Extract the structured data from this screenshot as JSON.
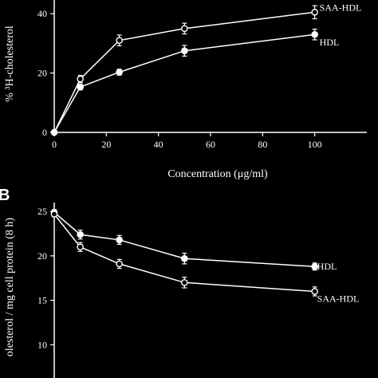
{
  "chart_data": [
    {
      "type": "line",
      "panel_label": "",
      "xlabel": "Concentration (μg/ml)",
      "ylabel": "% ³H-cholesterol",
      "xlim": [
        0,
        120
      ],
      "ylim": [
        0,
        50
      ],
      "xticks": [
        0,
        20,
        40,
        60,
        80,
        100
      ],
      "yticks": [
        0,
        20,
        40
      ],
      "series": [
        {
          "name": "SAA-HDL",
          "marker": "open-circle",
          "x": [
            0,
            10,
            25,
            50,
            100
          ],
          "y": [
            0,
            18,
            31,
            35,
            40.5
          ],
          "err": [
            0,
            1.2,
            1.8,
            1.8,
            2.2
          ]
        },
        {
          "name": "HDL",
          "marker": "filled-circle",
          "x": [
            0,
            10,
            25,
            50,
            100
          ],
          "y": [
            0,
            15.3,
            20.3,
            27.5,
            33
          ],
          "err": [
            0,
            1.0,
            1.0,
            1.8,
            1.8
          ]
        }
      ]
    },
    {
      "type": "line",
      "panel_label": "B",
      "xlabel": "",
      "ylabel": "olesterol / mg cell protein (8 h)",
      "ylim": [
        5,
        26
      ],
      "yticks": [
        10,
        15,
        20,
        25
      ],
      "series": [
        {
          "name": "HDL",
          "marker": "filled-circle",
          "x": [
            0,
            10,
            25,
            50,
            100
          ],
          "y": [
            24.9,
            22.4,
            21.8,
            19.7,
            18.8
          ],
          "err": [
            0.3,
            0.5,
            0.5,
            0.6,
            0.4
          ]
        },
        {
          "name": "SAA-HDL",
          "marker": "open-circle",
          "x": [
            0,
            10,
            25,
            50,
            100
          ],
          "y": [
            24.7,
            21.0,
            19.1,
            17.0,
            16.0
          ],
          "err": [
            0.3,
            0.5,
            0.5,
            0.6,
            0.5
          ]
        }
      ]
    }
  ],
  "colors": {
    "background": "#000000",
    "foreground": "#ffffff"
  }
}
